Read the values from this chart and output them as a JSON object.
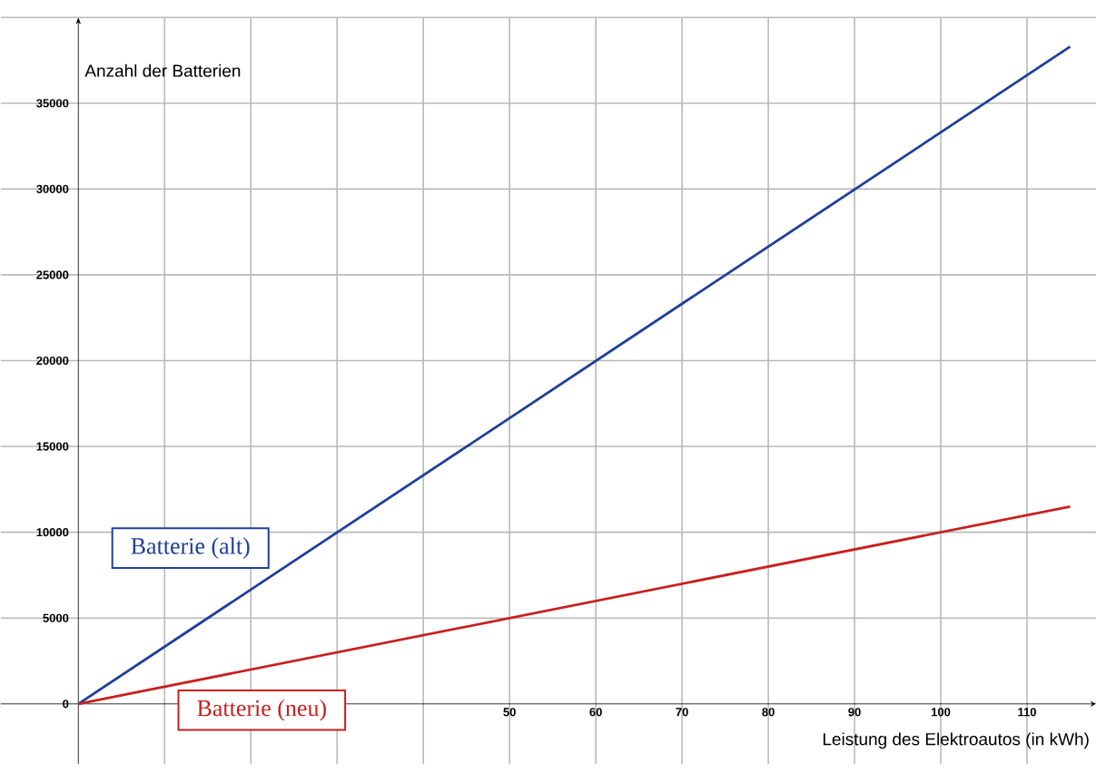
{
  "chart_data": {
    "type": "line",
    "xlabel": "Leistung des Elektroautos (in kWh)",
    "ylabel": "Anzahl der Batterien",
    "xlim": [
      -9,
      118
    ],
    "ylim": [
      -3500,
      40000
    ],
    "xticks": [
      {
        "value": 0,
        "label": null
      },
      {
        "value": 10,
        "label": null
      },
      {
        "value": 20,
        "label": null
      },
      {
        "value": 30,
        "label": null
      },
      {
        "value": 40,
        "label": null
      },
      50,
      60,
      70,
      80,
      90,
      100,
      110
    ],
    "yticks": [
      0,
      5000,
      10000,
      15000,
      20000,
      25000,
      30000,
      35000,
      {
        "value": 40000,
        "label": null
      }
    ],
    "grid": true,
    "marker": "none",
    "line_style": "solid",
    "x": [
      0,
      115
    ],
    "series": [
      {
        "name": "Batterie (alt)",
        "color": "#1f3f9a",
        "values": [
          0,
          38300
        ]
      },
      {
        "name": "Batterie (neu)",
        "color": "#c8201e",
        "values": [
          0,
          11500
        ]
      }
    ]
  }
}
